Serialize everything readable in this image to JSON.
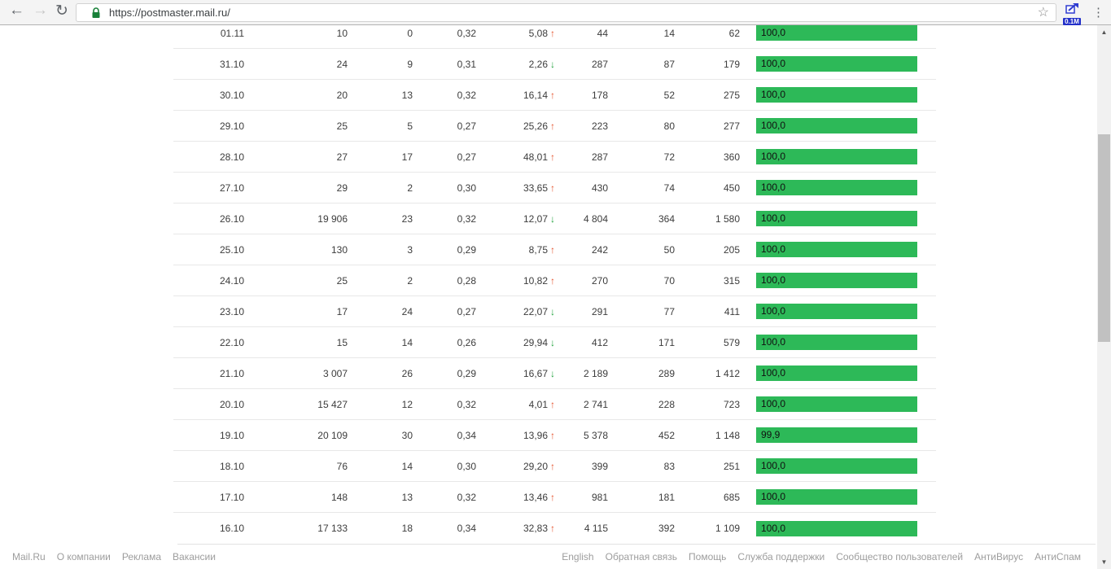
{
  "browser": {
    "url": "https://postmaster.mail.ru/",
    "extension_badge": "0.1M"
  },
  "icons": {
    "back": "←",
    "forward": "→",
    "reload": "↻",
    "star": "☆",
    "menu": "⋮",
    "up_arrow": "↑",
    "down_arrow": "↓",
    "scroll_up": "▲",
    "scroll_down": "▼"
  },
  "colors": {
    "bar_green": "#2db958",
    "trend_up": "#e4512a",
    "trend_down": "#1fa23c",
    "lock_green": "#188038",
    "extension_blue": "#2330c9"
  },
  "table": {
    "rows": [
      {
        "date": "01.11",
        "c1": "10",
        "c2": "0",
        "c3": "0,32",
        "c4": "5,08",
        "trend": "up",
        "c5": "44",
        "c6": "14",
        "c7": "62",
        "bar": "100,0",
        "bar_pct": 100
      },
      {
        "date": "31.10",
        "c1": "24",
        "c2": "9",
        "c3": "0,31",
        "c4": "2,26",
        "trend": "down",
        "c5": "287",
        "c6": "87",
        "c7": "179",
        "bar": "100,0",
        "bar_pct": 100
      },
      {
        "date": "30.10",
        "c1": "20",
        "c2": "13",
        "c3": "0,32",
        "c4": "16,14",
        "trend": "up",
        "c5": "178",
        "c6": "52",
        "c7": "275",
        "bar": "100,0",
        "bar_pct": 100
      },
      {
        "date": "29.10",
        "c1": "25",
        "c2": "5",
        "c3": "0,27",
        "c4": "25,26",
        "trend": "up",
        "c5": "223",
        "c6": "80",
        "c7": "277",
        "bar": "100,0",
        "bar_pct": 100
      },
      {
        "date": "28.10",
        "c1": "27",
        "c2": "17",
        "c3": "0,27",
        "c4": "48,01",
        "trend": "up",
        "c5": "287",
        "c6": "72",
        "c7": "360",
        "bar": "100,0",
        "bar_pct": 100
      },
      {
        "date": "27.10",
        "c1": "29",
        "c2": "2",
        "c3": "0,30",
        "c4": "33,65",
        "trend": "up",
        "c5": "430",
        "c6": "74",
        "c7": "450",
        "bar": "100,0",
        "bar_pct": 100
      },
      {
        "date": "26.10",
        "c1": "19 906",
        "c2": "23",
        "c3": "0,32",
        "c4": "12,07",
        "trend": "down",
        "c5": "4 804",
        "c6": "364",
        "c7": "1 580",
        "bar": "100,0",
        "bar_pct": 100
      },
      {
        "date": "25.10",
        "c1": "130",
        "c2": "3",
        "c3": "0,29",
        "c4": "8,75",
        "trend": "up",
        "c5": "242",
        "c6": "50",
        "c7": "205",
        "bar": "100,0",
        "bar_pct": 100
      },
      {
        "date": "24.10",
        "c1": "25",
        "c2": "2",
        "c3": "0,28",
        "c4": "10,82",
        "trend": "up",
        "c5": "270",
        "c6": "70",
        "c7": "315",
        "bar": "100,0",
        "bar_pct": 100
      },
      {
        "date": "23.10",
        "c1": "17",
        "c2": "24",
        "c3": "0,27",
        "c4": "22,07",
        "trend": "down",
        "c5": "291",
        "c6": "77",
        "c7": "411",
        "bar": "100,0",
        "bar_pct": 100
      },
      {
        "date": "22.10",
        "c1": "15",
        "c2": "14",
        "c3": "0,26",
        "c4": "29,94",
        "trend": "down",
        "c5": "412",
        "c6": "171",
        "c7": "579",
        "bar": "100,0",
        "bar_pct": 100
      },
      {
        "date": "21.10",
        "c1": "3 007",
        "c2": "26",
        "c3": "0,29",
        "c4": "16,67",
        "trend": "down",
        "c5": "2 189",
        "c6": "289",
        "c7": "1 412",
        "bar": "100,0",
        "bar_pct": 100
      },
      {
        "date": "20.10",
        "c1": "15 427",
        "c2": "12",
        "c3": "0,32",
        "c4": "4,01",
        "trend": "up",
        "c5": "2 741",
        "c6": "228",
        "c7": "723",
        "bar": "100,0",
        "bar_pct": 100
      },
      {
        "date": "19.10",
        "c1": "20 109",
        "c2": "30",
        "c3": "0,34",
        "c4": "13,96",
        "trend": "up",
        "c5": "5 378",
        "c6": "452",
        "c7": "1 148",
        "bar": "99,9",
        "bar_pct": 99.9
      },
      {
        "date": "18.10",
        "c1": "76",
        "c2": "14",
        "c3": "0,30",
        "c4": "29,20",
        "trend": "up",
        "c5": "399",
        "c6": "83",
        "c7": "251",
        "bar": "100,0",
        "bar_pct": 100
      },
      {
        "date": "17.10",
        "c1": "148",
        "c2": "13",
        "c3": "0,32",
        "c4": "13,46",
        "trend": "up",
        "c5": "981",
        "c6": "181",
        "c7": "685",
        "bar": "100,0",
        "bar_pct": 100
      },
      {
        "date": "16.10",
        "c1": "17 133",
        "c2": "18",
        "c3": "0,34",
        "c4": "32,83",
        "trend": "up",
        "c5": "4 115",
        "c6": "392",
        "c7": "1 109",
        "bar": "100,0",
        "bar_pct": 100
      }
    ]
  },
  "footer": {
    "left": [
      "Mail.Ru",
      "О компании",
      "Реклама",
      "Вакансии"
    ],
    "right": [
      "English",
      "Обратная связь",
      "Помощь",
      "Служба поддержки",
      "Сообщество пользователей",
      "АнтиВирус",
      "АнтиСпам"
    ]
  }
}
